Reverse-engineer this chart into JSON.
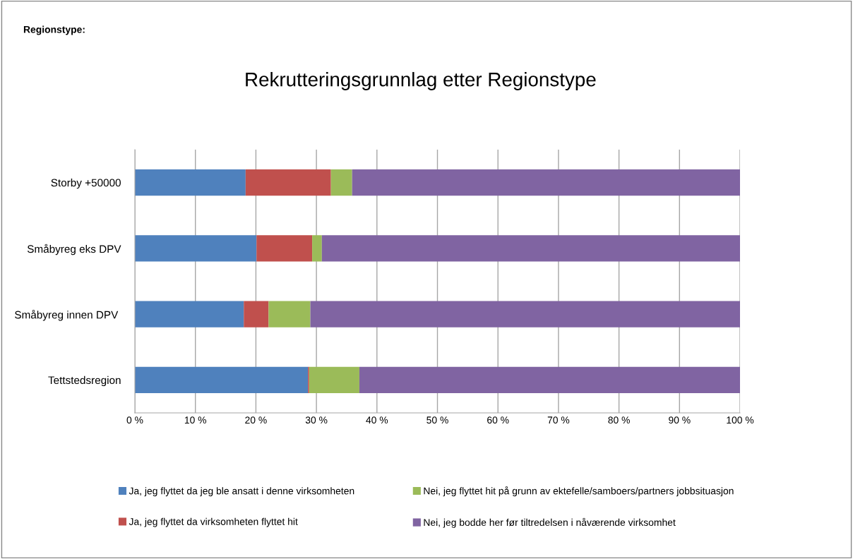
{
  "chart_data": {
    "type": "bar",
    "orientation": "horizontal",
    "stacked": true,
    "title": "Rekrutteringsgrunnlag etter Regionstype",
    "annotations": [
      "Regionstype:"
    ],
    "categories": [
      "Storby +50000",
      "Småbyreg eks DPV",
      "Småbyreg innen DPV ",
      "Tettstedsregion"
    ],
    "series": [
      {
        "name": "Ja, jeg flyttet da jeg ble ansatt i denne virksomheten",
        "color": "#4f81bd",
        "values": [
          18.3,
          20.1,
          18.0,
          28.6
        ]
      },
      {
        "name": "Ja, jeg flyttet da virksomheten flyttet hit",
        "color": "#c0504d",
        "values": [
          14.1,
          9.2,
          4.1,
          0.2
        ]
      },
      {
        "name": "Nei, jeg flyttet hit på grunn av ektefelle/samboers/partners jobbsituasjon",
        "color": "#9bbb59",
        "values": [
          3.5,
          1.6,
          6.9,
          8.3
        ]
      },
      {
        "name": "Nei, jeg bodde her før tiltredelsen i nåværende virksomhet",
        "color": "#8064a2",
        "values": [
          64.1,
          69.1,
          71.0,
          62.9
        ]
      }
    ],
    "xlim": [
      0,
      100
    ],
    "xticks": [
      {
        "value": 0,
        "label": "0 %"
      },
      {
        "value": 10,
        "label": "10 %"
      },
      {
        "value": 20,
        "label": "20 %"
      },
      {
        "value": 30,
        "label": "30 %"
      },
      {
        "value": 40,
        "label": "40 %"
      },
      {
        "value": 50,
        "label": "50 %"
      },
      {
        "value": 60,
        "label": "60 %"
      },
      {
        "value": 70,
        "label": "70 %"
      },
      {
        "value": 80,
        "label": "80 %"
      },
      {
        "value": 90,
        "label": "90 %"
      },
      {
        "value": 100,
        "label": "100 %"
      }
    ],
    "grid": "x",
    "legend": "bottom"
  }
}
